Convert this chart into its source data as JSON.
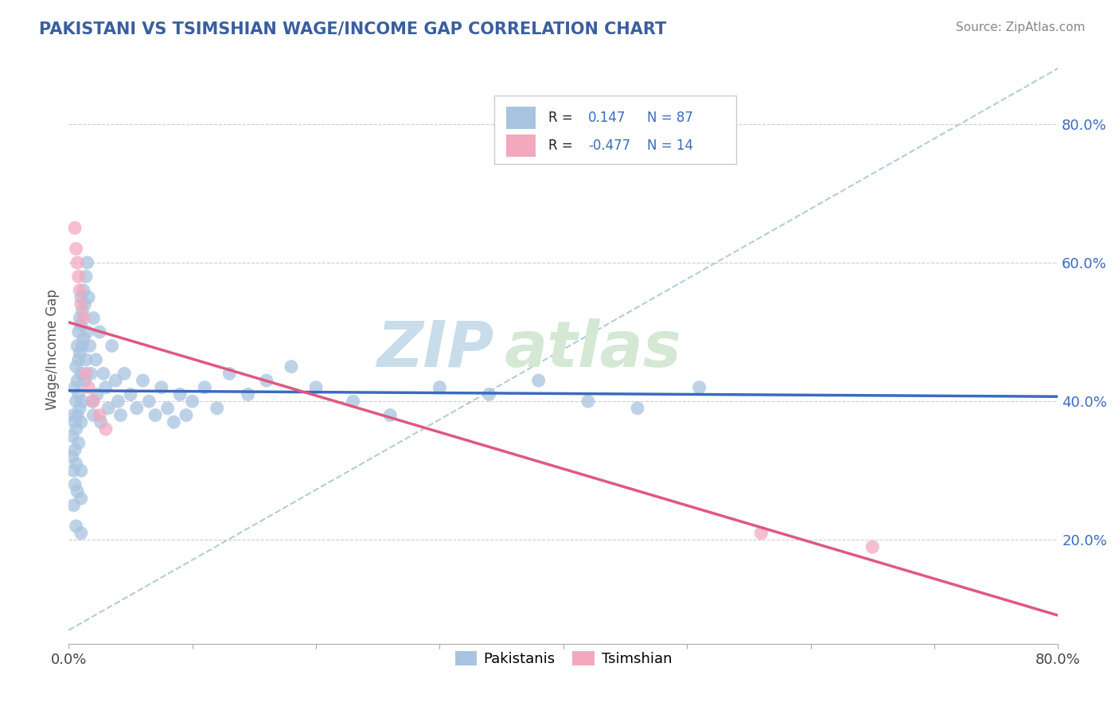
{
  "title": "PAKISTANI VS TSIMSHIAN WAGE/INCOME GAP CORRELATION CHART",
  "source": "Source: ZipAtlas.com",
  "ylabel": "Wage/Income Gap",
  "ytick_labels": [
    "20.0%",
    "40.0%",
    "60.0%",
    "80.0%"
  ],
  "ytick_values": [
    0.2,
    0.4,
    0.6,
    0.8
  ],
  "xlim": [
    0.0,
    0.8
  ],
  "ylim": [
    0.05,
    0.9
  ],
  "R_pakistani": 0.147,
  "N_pakistani": 87,
  "R_tsimshian": -0.477,
  "N_tsimshian": 14,
  "blue_color": "#a8c4e0",
  "blue_line_color": "#3a6bbf",
  "pink_color": "#f4a8be",
  "pink_line_color": "#e05880",
  "ref_line_color": "#a8c8d8",
  "title_color": "#3a5fa0",
  "source_color": "#888888",
  "watermark_zip_color": "#c8dcea",
  "watermark_atlas_color": "#d4e8d4",
  "legend_R_color": "#3a6bbf",
  "pak_x": [
    0.003,
    0.003,
    0.004,
    0.004,
    0.004,
    0.005,
    0.005,
    0.005,
    0.005,
    0.006,
    0.006,
    0.006,
    0.006,
    0.006,
    0.007,
    0.007,
    0.007,
    0.007,
    0.008,
    0.008,
    0.008,
    0.008,
    0.009,
    0.009,
    0.009,
    0.01,
    0.01,
    0.01,
    0.01,
    0.01,
    0.01,
    0.01,
    0.011,
    0.011,
    0.011,
    0.012,
    0.012,
    0.013,
    0.013,
    0.014,
    0.014,
    0.015,
    0.015,
    0.016,
    0.017,
    0.018,
    0.019,
    0.02,
    0.02,
    0.022,
    0.023,
    0.025,
    0.026,
    0.028,
    0.03,
    0.032,
    0.035,
    0.038,
    0.04,
    0.042,
    0.045,
    0.05,
    0.055,
    0.06,
    0.065,
    0.07,
    0.075,
    0.08,
    0.085,
    0.09,
    0.095,
    0.1,
    0.11,
    0.12,
    0.13,
    0.145,
    0.16,
    0.18,
    0.2,
    0.23,
    0.26,
    0.3,
    0.34,
    0.38,
    0.42,
    0.46,
    0.51
  ],
  "pak_y": [
    0.35,
    0.32,
    0.38,
    0.3,
    0.25,
    0.42,
    0.37,
    0.33,
    0.28,
    0.45,
    0.4,
    0.36,
    0.31,
    0.22,
    0.48,
    0.43,
    0.38,
    0.27,
    0.5,
    0.46,
    0.41,
    0.34,
    0.52,
    0.47,
    0.39,
    0.55,
    0.51,
    0.44,
    0.37,
    0.3,
    0.26,
    0.21,
    0.53,
    0.48,
    0.4,
    0.56,
    0.49,
    0.54,
    0.43,
    0.58,
    0.46,
    0.6,
    0.5,
    0.55,
    0.48,
    0.44,
    0.4,
    0.52,
    0.38,
    0.46,
    0.41,
    0.5,
    0.37,
    0.44,
    0.42,
    0.39,
    0.48,
    0.43,
    0.4,
    0.38,
    0.44,
    0.41,
    0.39,
    0.43,
    0.4,
    0.38,
    0.42,
    0.39,
    0.37,
    0.41,
    0.38,
    0.4,
    0.42,
    0.39,
    0.44,
    0.41,
    0.43,
    0.45,
    0.42,
    0.4,
    0.38,
    0.42,
    0.41,
    0.43,
    0.4,
    0.39,
    0.42
  ],
  "tsi_x": [
    0.005,
    0.006,
    0.007,
    0.008,
    0.009,
    0.01,
    0.012,
    0.014,
    0.016,
    0.02,
    0.025,
    0.03,
    0.56,
    0.65
  ],
  "tsi_y": [
    0.65,
    0.62,
    0.6,
    0.58,
    0.56,
    0.54,
    0.52,
    0.44,
    0.42,
    0.4,
    0.38,
    0.36,
    0.21,
    0.19
  ]
}
